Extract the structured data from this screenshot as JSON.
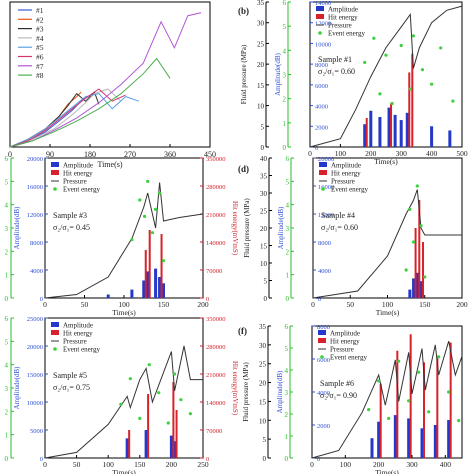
{
  "chart_data": [
    {
      "type": "line",
      "panel_label": "",
      "xlabel": "Time(s)",
      "xlim": [
        0,
        450
      ],
      "xticks": [
        "0",
        "90",
        "180",
        "270",
        "360",
        "450"
      ],
      "legend": [
        "#1",
        "#2",
        "#3",
        "#4",
        "#5",
        "#6",
        "#7",
        "#8"
      ],
      "legend_position": "top-left",
      "series": [
        {
          "name": "#1",
          "color": "#3b5bdb",
          "x": [
            0,
            40,
            80,
            110,
            140,
            160,
            180
          ],
          "y": [
            0,
            4,
            10,
            17,
            24,
            30,
            34
          ]
        },
        {
          "name": "#2",
          "color": "#e8590c",
          "x": [
            0,
            40,
            80,
            110,
            130,
            150,
            160
          ],
          "y": [
            0,
            5,
            12,
            20,
            28,
            33,
            36
          ]
        },
        {
          "name": "#3",
          "color": "#2f2f2f",
          "x": [
            0,
            40,
            80,
            110,
            130,
            150,
            170,
            190,
            200
          ],
          "y": [
            0,
            5,
            12,
            20,
            27,
            35,
            30,
            36,
            28
          ]
        },
        {
          "name": "#4",
          "color": "#b8b8b8",
          "x": [
            0,
            50,
            100,
            140,
            170,
            190,
            220,
            250
          ],
          "y": [
            0,
            5,
            12,
            21,
            29,
            35,
            38,
            30
          ]
        },
        {
          "name": "#5",
          "color": "#5aa0e6",
          "x": [
            0,
            40,
            80,
            110,
            140,
            170,
            200,
            230,
            260,
            290
          ],
          "y": [
            0,
            5,
            12,
            19,
            26,
            33,
            35,
            25,
            33,
            30
          ]
        },
        {
          "name": "#6",
          "color": "#d6336c",
          "x": [
            0,
            40,
            80,
            110,
            140,
            170,
            200,
            230,
            260
          ],
          "y": [
            0,
            4,
            11,
            18,
            25,
            32,
            38,
            30,
            34
          ]
        },
        {
          "name": "#7",
          "color": "#b057d6",
          "x": [
            0,
            50,
            100,
            150,
            200,
            250,
            300,
            340,
            370,
            400,
            430
          ],
          "y": [
            0,
            4,
            11,
            19,
            29,
            41,
            55,
            82,
            65,
            86,
            88
          ]
        },
        {
          "name": "#8",
          "color": "#4caf50",
          "x": [
            0,
            50,
            100,
            150,
            200,
            250,
            300,
            330,
            360
          ],
          "y": [
            0,
            4,
            10,
            17,
            25,
            35,
            48,
            58,
            45
          ]
        }
      ]
    },
    {
      "type": "bar",
      "panel_label": "b",
      "xlabel": "Time(s)",
      "ylabel_left_outer": "Fluid pressure (MPa)",
      "ylabel_left_inner": "Amplitude(dB)",
      "annotation": "Sample #1",
      "ratio": "σ₂/σ₁= 0.60",
      "xlim": [
        0,
        500
      ],
      "xticks": [
        "0",
        "100",
        "200",
        "300",
        "400",
        "500"
      ],
      "yticks_outer": [
        "0",
        "5",
        "10",
        "15",
        "20",
        "25",
        "30",
        "35"
      ],
      "yticks_inner": [
        "0",
        "1",
        "2",
        "3",
        "4",
        "5",
        "6"
      ],
      "yticks_amp": [
        "0",
        "2000",
        "4000",
        "6000",
        "8000",
        "10000",
        "12000",
        "14000"
      ],
      "legend": [
        "Amplitude",
        "Hit energy",
        "Pressure",
        "Event energy"
      ],
      "pressure": {
        "x": [
          0,
          100,
          150,
          200,
          250,
          300,
          330,
          340,
          360,
          400,
          450,
          500
        ],
        "y": [
          0,
          2,
          9,
          17,
          24,
          29,
          32,
          19,
          24,
          30,
          33,
          34
        ]
      },
      "amplitude": {
        "x": [
          180,
          200,
          230,
          260,
          280,
          300,
          320,
          400,
          460
        ],
        "y": [
          2200,
          3500,
          2900,
          3800,
          3100,
          2600,
          3300,
          2000,
          1600
        ]
      },
      "hit_energy": {
        "x": [
          180,
          260,
          320,
          330
        ],
        "y": [
          2800,
          4200,
          7200,
          9000
        ]
      },
      "event_energy": {
        "x": [
          180,
          210,
          230,
          250,
          270,
          300,
          330,
          340,
          370,
          400,
          430,
          470
        ],
        "y": [
          3.5,
          4.5,
          2.2,
          3.8,
          1.8,
          4.2,
          2.4,
          4.6,
          3.2,
          2.6,
          4.1,
          1.9
        ]
      }
    },
    {
      "type": "bar",
      "panel_label": "",
      "xlabel": "Time(s)",
      "ylabel_left_outer": "Event energy(10² aJ/event)",
      "ylabel_left_inner": "Amplitude(dB)",
      "ylabel_right": "Hit energy(mVmS)",
      "annotation": "Sample #3",
      "ratio": "σ₂/σ₁= 0.45",
      "xlim": [
        0,
        200
      ],
      "xticks": [
        "0",
        "50",
        "100",
        "150",
        "200"
      ],
      "yticks_outer": [
        "0",
        "1",
        "2",
        "3",
        "4",
        "5",
        "6"
      ],
      "yticks_inner": [
        "0",
        "4000",
        "8000",
        "12000",
        "16000",
        "20000"
      ],
      "yticks_right": [
        "0",
        "70000",
        "140000",
        "210000",
        "280000",
        "350000"
      ],
      "legend": [
        "Amplitude",
        "Hit energy",
        "Pressure",
        "Event energy"
      ],
      "pressure": {
        "x": [
          0,
          40,
          80,
          110,
          125,
          130,
          140,
          145,
          150,
          170,
          200
        ],
        "y": [
          0,
          500,
          3000,
          8500,
          13000,
          15000,
          10000,
          16500,
          11000,
          11500,
          12000
        ]
      },
      "amplitude": {
        "x": [
          80,
          110,
          125,
          130,
          140,
          145,
          150
        ],
        "y": [
          500,
          1200,
          2500,
          3800,
          4200,
          3000,
          2100
        ]
      },
      "hit_energy": {
        "x": [
          125,
          130,
          145
        ],
        "y": [
          120000,
          170000,
          160000
        ]
      },
      "event_energy": {
        "x": [
          110,
          120,
          126,
          130,
          136,
          140,
          145,
          150
        ],
        "y": [
          2.5,
          4.2,
          3.5,
          5.0,
          2.8,
          3.8,
          4.5,
          1.6
        ]
      }
    },
    {
      "type": "bar",
      "panel_label": "d",
      "xlabel": "Time(s)",
      "ylabel_left_outer": "Fluid pressure (MPa)",
      "ylabel_left_inner": "Amplitude(dB)",
      "annotation": "Sample #4",
      "ratio": "σ₂/σ₁= 0.60",
      "xlim": [
        0,
        200
      ],
      "xticks": [
        "0",
        "50",
        "100",
        "150",
        "200"
      ],
      "yticks_outer": [
        "0",
        "5",
        "10",
        "15",
        "20",
        "25",
        "30",
        "35",
        "40"
      ],
      "yticks_inner": [
        "0",
        "1",
        "2",
        "3",
        "4",
        "5",
        "6"
      ],
      "yticks_amp": [
        "0",
        "4000",
        "8000",
        "12000",
        "16000",
        "20000"
      ],
      "legend": [
        "Amplitude",
        "Hit energy",
        "Pressure",
        "Event energy"
      ],
      "pressure": {
        "x": [
          0,
          60,
          100,
          125,
          135,
          140,
          145,
          150,
          170,
          200
        ],
        "y": [
          0,
          2,
          12,
          24,
          28,
          31,
          20,
          18,
          18,
          18
        ]
      },
      "amplitude": {
        "x": [
          130,
          135,
          140,
          145
        ],
        "y": [
          1200,
          2800,
          3600,
          2400
        ]
      },
      "hit_energy": {
        "x": [
          135,
          140,
          145
        ],
        "y": [
          10000,
          14000,
          8000
        ]
      },
      "event_energy": {
        "x": [
          125,
          130,
          135,
          140,
          145,
          150
        ],
        "y": [
          1.2,
          3.8,
          2.4,
          4.8,
          3.1,
          0.9
        ]
      }
    },
    {
      "type": "bar",
      "panel_label": "",
      "xlabel": "Time(s)",
      "ylabel_left_outer": "Event energy(10² aJ/event)",
      "ylabel_left_inner": "Amplitude(dB)",
      "ylabel_right": "Hit energy(mVmS)",
      "annotation": "Sample #5",
      "ratio": "σ₂/σ₁= 0.75",
      "xlim": [
        0,
        250
      ],
      "xticks": [
        "0",
        "50",
        "100",
        "150",
        "200",
        "250"
      ],
      "yticks_outer": [
        "0",
        "1",
        "2",
        "3",
        "4",
        "5",
        "6"
      ],
      "yticks_inner": [
        "0",
        "5000",
        "10000",
        "15000",
        "20000",
        "25000"
      ],
      "yticks_right": [
        "0",
        "70000",
        "140000",
        "210000",
        "280000",
        "350000"
      ],
      "legend": [
        "Amplitude",
        "Hit energy",
        "Pressure",
        "Event energy"
      ],
      "pressure": {
        "x": [
          0,
          50,
          100,
          130,
          135,
          150,
          160,
          170,
          200,
          205,
          220,
          230,
          250
        ],
        "y": [
          0,
          1000,
          6000,
          11000,
          9000,
          14000,
          16000,
          10000,
          19000,
          12000,
          20000,
          14000,
          14000
        ]
      },
      "amplitude": {
        "x": [
          130,
          160,
          200,
          205
        ],
        "y": [
          3500,
          5000,
          4000,
          3000
        ]
      },
      "hit_energy": {
        "x": [
          130,
          160,
          200,
          205
        ],
        "y": [
          70000,
          160000,
          190000,
          120000
        ]
      },
      "event_energy": {
        "x": [
          120,
          135,
          150,
          165,
          180,
          195,
          205,
          215,
          230
        ],
        "y": [
          2.3,
          3.4,
          1.7,
          4.0,
          2.8,
          1.5,
          3.6,
          2.5,
          1.9
        ]
      }
    },
    {
      "type": "bar",
      "panel_label": "f",
      "xlabel": "Time(s)",
      "ylabel_left_outer": "Fluid pressure (MPa)",
      "ylabel_left_inner": "Amplitude(dB)",
      "annotation": "Sample #6",
      "ratio": "σ₂/σ₁= 0.90",
      "xlim": [
        0,
        450
      ],
      "xticks": [
        "0",
        "100",
        "200",
        "300",
        "400"
      ],
      "yticks_outer": [
        "0",
        "5",
        "10",
        "15",
        "20",
        "25",
        "30",
        "35"
      ],
      "yticks_inner": [
        "0",
        "1",
        "2",
        "3",
        "4",
        "5",
        "6"
      ],
      "yticks_amp": [
        "0",
        "2000",
        "4000",
        "6000",
        "8000"
      ],
      "legend": [
        "Amplitude",
        "Hit energy",
        "Pressure",
        "Event energy"
      ],
      "pressure": {
        "x": [
          0,
          80,
          150,
          180,
          200,
          220,
          250,
          260,
          290,
          300,
          330,
          340,
          370,
          380,
          410,
          430,
          450
        ],
        "y": [
          0,
          2,
          12,
          18,
          22,
          14,
          26,
          15,
          28,
          17,
          29,
          18,
          30,
          22,
          31,
          22,
          27
        ]
      },
      "amplitude": {
        "x": [
          180,
          200,
          250,
          290,
          330,
          370,
          410
        ],
        "y": [
          1200,
          2200,
          2600,
          2400,
          1800,
          2000,
          2300
        ]
      },
      "hit_energy": {
        "x": [
          200,
          250,
          290,
          330,
          370,
          410
        ],
        "y": [
          4500,
          6500,
          7500,
          5800,
          6200,
          7000
        ]
      },
      "event_energy": {
        "x": [
          170,
          200,
          230,
          260,
          290,
          320,
          350,
          380,
          410,
          440
        ],
        "y": [
          2.2,
          3.5,
          1.8,
          4.4,
          2.6,
          3.9,
          2.1,
          4.6,
          3.0,
          1.7
        ]
      }
    }
  ]
}
